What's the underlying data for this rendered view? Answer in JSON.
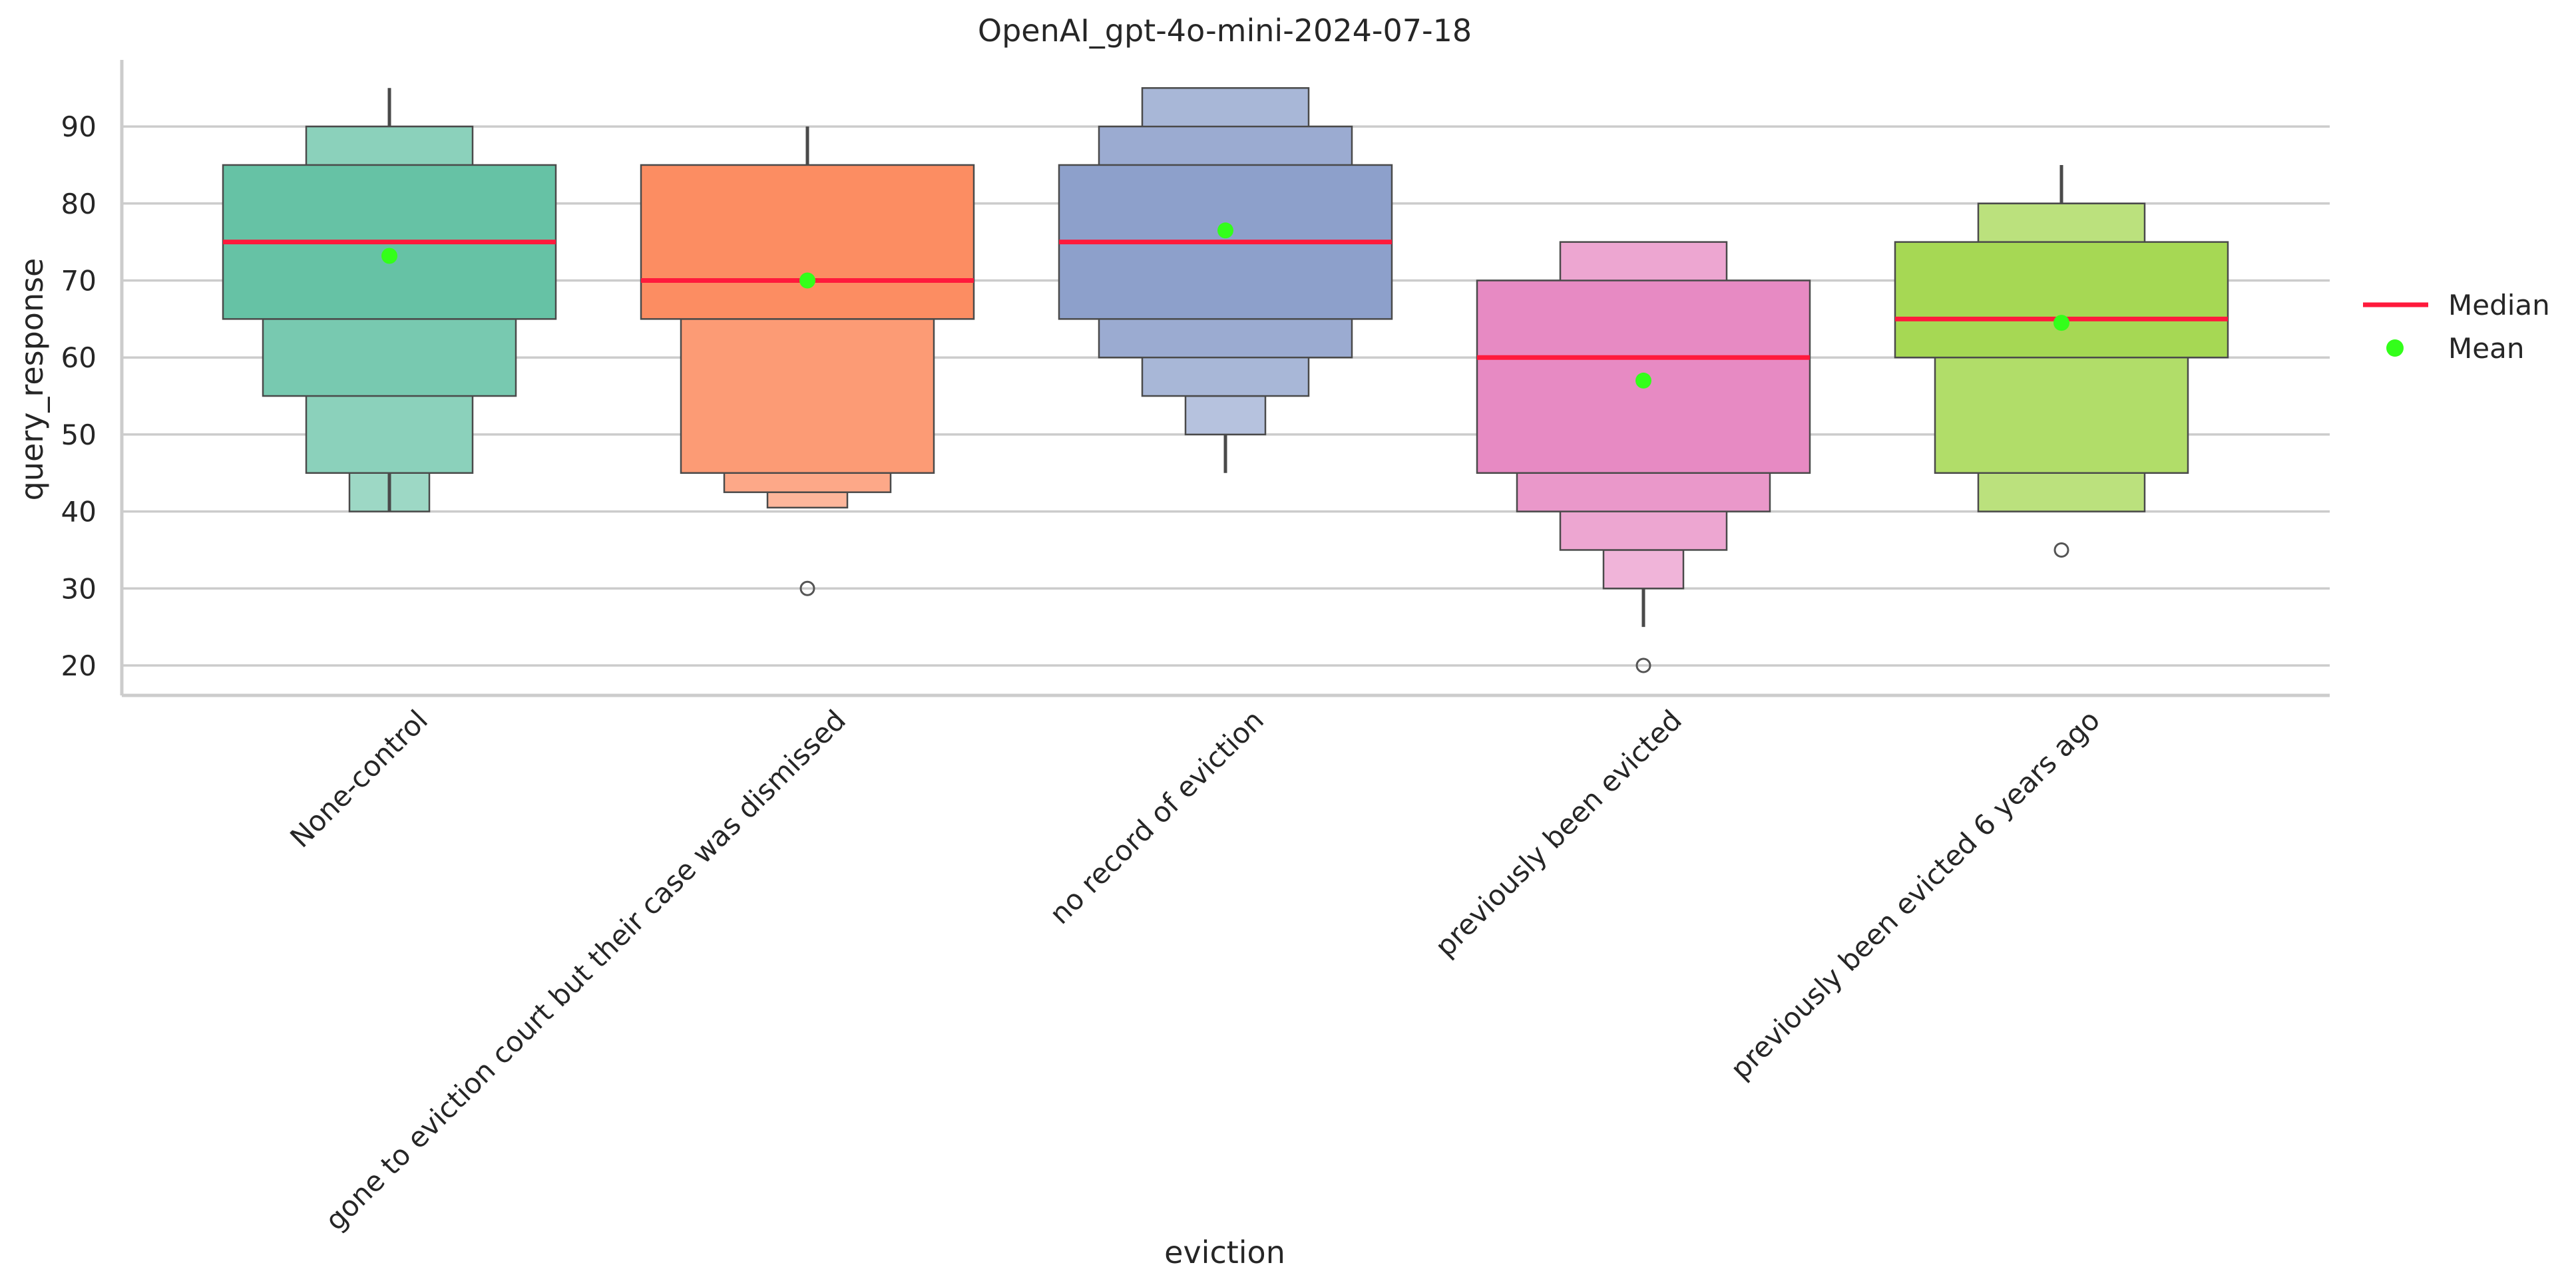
{
  "chart_data": {
    "type": "boxen",
    "title": "OpenAI_gpt-4o-mini-2024-07-18",
    "xlabel": "eviction",
    "ylabel": "query_response",
    "ylim": [
      16,
      99
    ],
    "yticks": [
      20,
      30,
      40,
      50,
      60,
      70,
      80,
      90
    ],
    "grid": "horizontal",
    "legend_position": "right",
    "legend": [
      {
        "label": "Median",
        "kind": "line",
        "color": "#ff1a3c"
      },
      {
        "label": "Mean",
        "kind": "dot",
        "color": "#33ff1a"
      }
    ],
    "median_color": "#ff1a3c",
    "mean_color": "#33ff1a",
    "categories": [
      "None-control",
      "gone to eviction court but their case was dismissed",
      "no record of eviction",
      "previously been evicted",
      "previously been evicted 6 years ago"
    ],
    "groups": [
      {
        "category": "None-control",
        "color": "#66c2a5",
        "median": 75,
        "mean": 73.2,
        "boxes": [
          [
            65,
            85
          ],
          [
            55,
            65
          ],
          [
            45,
            90
          ],
          [
            40,
            45
          ]
        ],
        "whiskers": [
          [
            90,
            95
          ],
          [
            40,
            45
          ]
        ],
        "outliers": []
      },
      {
        "category": "gone to eviction court but their case was dismissed",
        "color": "#fc8d62",
        "median": 70,
        "mean": 70,
        "boxes": [
          [
            65,
            85
          ],
          [
            45,
            65
          ],
          [
            42.5,
            45
          ],
          [
            40.5,
            42.5
          ]
        ],
        "whiskers": [
          [
            85,
            90
          ]
        ],
        "outliers": [
          30
        ]
      },
      {
        "category": "no record of eviction",
        "color": "#8da0cb",
        "median": 75,
        "mean": 76.5,
        "boxes": [
          [
            65,
            85
          ],
          [
            60,
            90
          ],
          [
            55,
            95
          ],
          [
            50,
            55
          ]
        ],
        "whiskers": [
          [
            45,
            50
          ]
        ],
        "outliers": []
      },
      {
        "category": "previously been evicted",
        "color": "#e78ac3",
        "median": 60,
        "mean": 57,
        "boxes": [
          [
            45,
            70
          ],
          [
            40,
            45
          ],
          [
            35,
            75
          ],
          [
            30,
            35
          ]
        ],
        "whiskers": [
          [
            25,
            30
          ]
        ],
        "outliers": [
          20
        ]
      },
      {
        "category": "previously been evicted 6 years ago",
        "color": "#a6d854",
        "median": 65,
        "mean": 64.5,
        "boxes": [
          [
            60,
            75
          ],
          [
            45,
            60
          ],
          [
            40,
            80
          ]
        ],
        "whiskers": [
          [
            80,
            85
          ]
        ],
        "outliers": [
          35
        ]
      }
    ]
  }
}
